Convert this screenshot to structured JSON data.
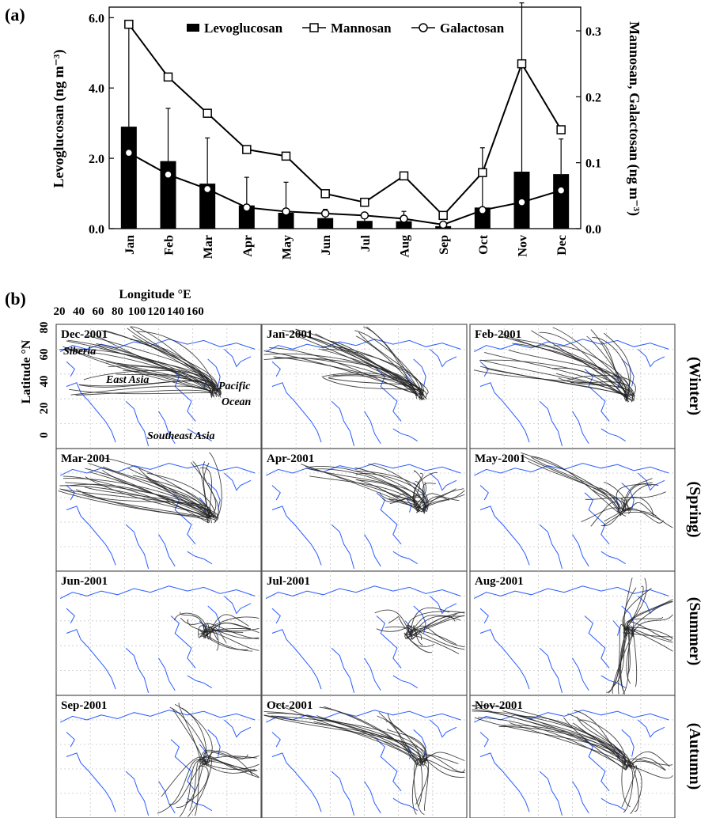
{
  "panel_a": {
    "label": "(a)",
    "legend": [
      "Levoglucosan",
      "Mannosan",
      "Galactosan"
    ]
  },
  "panel_b": {
    "label": "(b)",
    "xlabel": "Longitude °E",
    "ylabel": "Latitude °N",
    "lon_ticks": [
      "20",
      "40",
      "60",
      "80",
      "100",
      "120",
      "140",
      "160"
    ],
    "lat_ticks": [
      "80",
      "60",
      "40",
      "20",
      "0"
    ],
    "maps": [
      {
        "title": "Dec-2001",
        "season": "Winter"
      },
      {
        "title": "Jan-2001",
        "season": "Winter"
      },
      {
        "title": "Feb-2001",
        "season": "Winter"
      },
      {
        "title": "Mar-2001",
        "season": "Spring"
      },
      {
        "title": "Apr-2001",
        "season": "Spring"
      },
      {
        "title": "May-2001",
        "season": "Spring"
      },
      {
        "title": "Jun-2001",
        "season": "Summer"
      },
      {
        "title": "Jul-2001",
        "season": "Summer"
      },
      {
        "title": "Aug-2001",
        "season": "Summer"
      },
      {
        "title": "Sep-2001",
        "season": "Autumn"
      },
      {
        "title": "Oct-2001",
        "season": "Autumn"
      },
      {
        "title": "Nov-2001",
        "season": "Autumn"
      }
    ],
    "region_labels": [
      "Siberia",
      "East Asia",
      "Pacific",
      "Ocean",
      "Southeast Asia"
    ],
    "season_labels": [
      "(Winter)",
      "(Spring)",
      "(Summer)",
      "(Autumn)"
    ],
    "colors": {
      "coast": "#2a5cff",
      "trajectory": "#222222",
      "grid": "#c8c8c8"
    }
  },
  "chart_data": {
    "type": "bar",
    "categories": [
      "Jan",
      "Feb",
      "Mar",
      "Apr",
      "May",
      "Jun",
      "Jul",
      "Aug",
      "Sep",
      "Oct",
      "Nov",
      "Dec"
    ],
    "ylabel": "Levoglucosan (ng m⁻³)",
    "y2label": "Mannosan, Galactosan (ng m⁻³)",
    "ylim": [
      0,
      6.3
    ],
    "y2lim": [
      0,
      0.336
    ],
    "yticks": [
      "0.0",
      "2.0",
      "4.0",
      "6.0"
    ],
    "y2ticks": [
      "0.0",
      "0.1",
      "0.2",
      "0.3"
    ],
    "series": [
      {
        "name": "Levoglucosan",
        "type": "bar",
        "axis": "left",
        "values": [
          2.9,
          1.92,
          1.28,
          0.66,
          0.45,
          0.3,
          0.22,
          0.21,
          0.07,
          0.6,
          1.62,
          1.55
        ],
        "error": [
          2.82,
          1.5,
          1.3,
          0.8,
          0.87,
          0.25,
          0.15,
          0.28,
          0.03,
          1.7,
          4.8,
          1.0
        ]
      },
      {
        "name": "Mannosan",
        "type": "line",
        "axis": "right",
        "marker": "square",
        "values": [
          0.31,
          0.23,
          0.175,
          0.12,
          0.11,
          0.053,
          0.04,
          0.08,
          0.02,
          0.085,
          0.25,
          0.15
        ]
      },
      {
        "name": "Galactosan",
        "type": "line",
        "axis": "right",
        "marker": "circle",
        "values": [
          0.115,
          0.082,
          0.06,
          0.032,
          0.026,
          0.023,
          0.02,
          0.015,
          0.006,
          0.028,
          0.04,
          0.058
        ]
      }
    ]
  }
}
